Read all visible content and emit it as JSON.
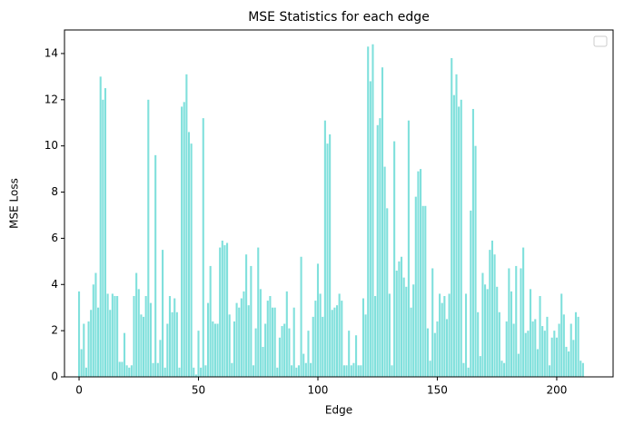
{
  "chart_data": {
    "type": "bar",
    "title": "MSE Statistics for each edge",
    "xlabel": "Edge",
    "ylabel": "MSE Loss",
    "color": "#80e0dc",
    "bar_width": 0.8,
    "x": [
      0,
      1,
      2,
      3,
      4,
      5,
      6,
      7,
      8,
      9,
      10,
      11,
      12,
      13,
      14,
      15,
      16,
      17,
      18,
      19,
      20,
      21,
      22,
      23,
      24,
      25,
      26,
      27,
      28,
      29,
      30,
      31,
      32,
      33,
      34,
      35,
      36,
      37,
      38,
      39,
      40,
      41,
      42,
      43,
      44,
      45,
      46,
      47,
      48,
      49,
      50,
      51,
      52,
      53,
      54,
      55,
      56,
      57,
      58,
      59,
      60,
      61,
      62,
      63,
      64,
      65,
      66,
      67,
      68,
      69,
      70,
      71,
      72,
      73,
      74,
      75,
      76,
      77,
      78,
      79,
      80,
      81,
      82,
      83,
      84,
      85,
      86,
      87,
      88,
      89,
      90,
      91,
      92,
      93,
      94,
      95,
      96,
      97,
      98,
      99,
      100,
      101,
      102,
      103,
      104,
      105,
      106,
      107,
      108,
      109,
      110,
      111,
      112,
      113,
      114,
      115,
      116,
      117,
      118,
      119,
      120,
      121,
      122,
      123,
      124,
      125,
      126,
      127,
      128,
      129,
      130,
      131,
      132,
      133,
      134,
      135,
      136,
      137,
      138,
      139,
      140,
      141,
      142,
      143,
      144,
      145,
      146,
      147,
      148,
      149,
      150,
      151,
      152,
      153,
      154,
      155,
      156,
      157,
      158,
      159,
      160,
      161,
      162,
      163,
      164,
      165,
      166,
      167,
      168,
      169,
      170,
      171,
      172,
      173,
      174,
      175,
      176,
      177,
      178,
      179,
      180,
      181,
      182,
      183,
      184,
      185,
      186,
      187,
      188,
      189,
      190,
      191,
      192,
      193,
      194,
      195,
      196,
      197,
      198,
      199,
      200,
      201,
      202,
      203,
      204,
      205,
      206,
      207,
      208,
      209,
      210,
      211
    ],
    "values": [
      3.7,
      1.2,
      2.3,
      0.4,
      2.4,
      2.9,
      4.0,
      4.5,
      3.0,
      13.0,
      12.0,
      12.5,
      3.6,
      2.9,
      3.6,
      3.5,
      3.5,
      0.65,
      0.65,
      1.9,
      0.5,
      0.4,
      0.5,
      3.5,
      4.5,
      3.8,
      2.7,
      2.6,
      3.5,
      12.0,
      3.2,
      0.6,
      9.6,
      0.6,
      1.6,
      5.5,
      0.4,
      2.3,
      3.5,
      2.8,
      3.4,
      2.8,
      0.4,
      11.7,
      11.9,
      13.1,
      10.6,
      10.1,
      0.4,
      0.1,
      2.0,
      0.4,
      11.2,
      0.5,
      3.2,
      4.8,
      2.4,
      2.3,
      2.3,
      5.6,
      5.9,
      5.7,
      5.8,
      2.7,
      0.6,
      2.4,
      3.2,
      3.0,
      3.4,
      3.7,
      5.3,
      3.1,
      4.8,
      0.5,
      2.1,
      5.6,
      3.8,
      1.3,
      2.3,
      3.3,
      3.5,
      3.0,
      3.0,
      0.4,
      1.7,
      2.2,
      2.3,
      3.7,
      2.1,
      0.5,
      3.0,
      0.4,
      0.5,
      5.2,
      1.0,
      0.6,
      2.0,
      0.6,
      2.6,
      3.3,
      4.9,
      3.6,
      2.6,
      11.1,
      10.1,
      10.5,
      2.9,
      3.0,
      3.1,
      3.6,
      3.3,
      0.5,
      0.5,
      2.0,
      0.5,
      0.6,
      1.8,
      0.5,
      0.5,
      3.4,
      2.7,
      14.3,
      12.8,
      14.4,
      3.5,
      10.9,
      11.2,
      13.4,
      9.1,
      7.3,
      3.6,
      0.5,
      10.2,
      4.6,
      5.0,
      5.2,
      4.3,
      3.9,
      11.1,
      3.0,
      4.0,
      7.8,
      8.9,
      9.0,
      7.4,
      7.4,
      2.1,
      0.7,
      4.7,
      1.9,
      2.4,
      3.6,
      3.2,
      3.5,
      2.5,
      3.6,
      13.8,
      12.2,
      13.1,
      11.7,
      12.0,
      0.6,
      3.6,
      0.4,
      7.2,
      11.6,
      10.0,
      2.8,
      0.9,
      4.5,
      4.0,
      3.8,
      5.5,
      5.9,
      5.3,
      3.9,
      2.8,
      0.7,
      0.6,
      2.4,
      4.7,
      3.7,
      2.3,
      4.8,
      1.0,
      4.7,
      5.6,
      1.9,
      2.0,
      3.8,
      2.4,
      2.5,
      1.2,
      3.5,
      2.2,
      2.0,
      2.6,
      0.5,
      1.7,
      2.0,
      1.7,
      2.3,
      3.6,
      2.7,
      1.3,
      1.1,
      2.3,
      1.6,
      2.8,
      2.6,
      0.7,
      0.6
    ],
    "xlim": [
      -6.1,
      223.6
    ],
    "xticks": [
      0,
      50,
      100,
      150,
      200
    ],
    "ylim": [
      0,
      15.02
    ],
    "yticks": [
      0,
      2,
      4,
      6,
      8,
      10,
      12,
      14
    ]
  }
}
